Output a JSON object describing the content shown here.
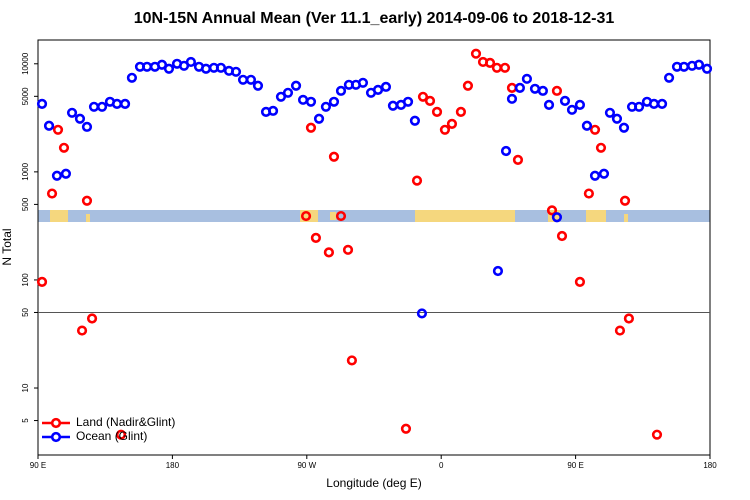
{
  "chart_data": {
    "type": "scatter",
    "title": "10N-15N Annual Mean (Ver 11.1_early)   2014-09-06 to 2018-12-31",
    "x_label": "Longitude (deg E)",
    "y_label": "N Total",
    "log_y": true,
    "legend": "bottomleft",
    "hline": 50,
    "xlim": [
      90,
      540
    ],
    "xticks": [
      {
        "value": 90,
        "label": "90 E"
      },
      180,
      {
        "value": 270,
        "label": "90 W"
      },
      {
        "value": 360,
        "label": "0"
      },
      {
        "value": 450,
        "label": "90 E"
      },
      {
        "value": 540,
        "label": "180"
      }
    ],
    "ylim": [
      2.4,
      16600
    ],
    "yticks": [
      5,
      10,
      50,
      100,
      500,
      1000,
      5000,
      10000
    ],
    "series": [
      {
        "name": "Land (Nadir&Glint)",
        "color": "#ff0000",
        "x": [
          92.7,
          99.4,
          103.4,
          107.4,
          119.5,
          122.8,
          126.2,
          145.6,
          269.5,
          272.8,
          276.1,
          284.8,
          288.2,
          292.9,
          297.6,
          300.2,
          336.4,
          343.8,
          347.8,
          352.5,
          357.2,
          362.5,
          367.2,
          373.2,
          377.9,
          383.3,
          388,
          392.7,
          397.3,
          402.7,
          407.4,
          411.4,
          434.2,
          437.5,
          440.9,
          452.9,
          458.9,
          463,
          467,
          479.7,
          483.1,
          485.7,
          504.5
        ],
        "values": [
          96,
          630,
          2450,
          1670,
          34,
          540,
          44,
          3.7,
          390,
          2560,
          245,
          180,
          1380,
          390,
          190,
          18,
          4.2,
          830,
          4950,
          4540,
          3590,
          2450,
          2780,
          3590,
          6260,
          12400,
          10400,
          10200,
          9180,
          9180,
          5990,
          1290,
          440,
          5620,
          255,
          96,
          630,
          2450,
          1670,
          34,
          540,
          44,
          3.7
        ]
      },
      {
        "name": "Ocean (Glint)",
        "color": "#0000ff",
        "x": [
          92.7,
          97.4,
          102.7,
          108.7,
          112.8,
          118.1,
          122.8,
          127.5,
          132.9,
          138.2,
          142.9,
          148.3,
          152.9,
          158.3,
          163,
          168.3,
          173,
          177.7,
          183.1,
          187.8,
          192.4,
          197.8,
          202.5,
          207.8,
          212.5,
          217.9,
          222.6,
          227.3,
          232.6,
          237.3,
          242.7,
          247.4,
          252.7,
          257.4,
          262.8,
          267.5,
          272.8,
          278.2,
          282.8,
          288.2,
          292.9,
          298.2,
          302.9,
          307.6,
          313,
          317.7,
          323,
          327.7,
          333.1,
          337.8,
          342.4,
          347.1,
          398,
          403.4,
          407.4,
          412.7,
          417.4,
          422.8,
          428.1,
          432.2,
          437.5,
          442.9,
          447.6,
          452.9,
          457.6,
          463,
          469,
          473,
          477.7,
          482.4,
          487.8,
          492.5,
          497.8,
          502.5,
          507.9,
          512.6,
          517.9,
          522.6,
          528,
          532.6,
          538
        ],
        "values": [
          4260,
          2670,
          920,
          960,
          3520,
          3100,
          2610,
          4000,
          4000,
          4450,
          4260,
          4260,
          7420,
          9380,
          9380,
          9380,
          9790,
          8990,
          10000,
          9580,
          10400,
          9380,
          8990,
          9180,
          9180,
          8610,
          8430,
          7110,
          7110,
          6260,
          3590,
          3670,
          4950,
          5390,
          6260,
          4640,
          4450,
          3100,
          4000,
          4450,
          5620,
          6390,
          6390,
          6670,
          5390,
          5740,
          6120,
          4090,
          4170,
          4450,
          2970,
          49,
          121,
          1560,
          4740,
          5990,
          7260,
          5870,
          5620,
          4170,
          380,
          4540,
          3750,
          4170,
          2670,
          920,
          960,
          3520,
          3100,
          2560,
          4000,
          4000,
          4450,
          4260,
          4260,
          7420,
          9380,
          9380,
          9580,
          9790,
          8990
        ]
      }
    ]
  }
}
